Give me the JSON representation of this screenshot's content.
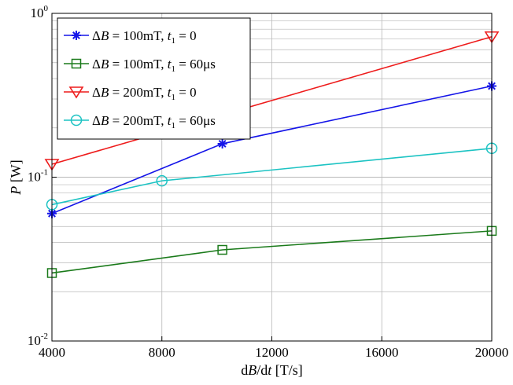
{
  "chart_data": {
    "type": "line",
    "xscale": "linear",
    "yscale": "log",
    "xlim": [
      4000,
      20000
    ],
    "ylim": [
      0.01,
      1
    ],
    "x_ticks": [
      {
        "value": 4000,
        "label": "4000"
      },
      {
        "value": 8000,
        "label": "8000"
      },
      {
        "value": 12000,
        "label": "12000"
      },
      {
        "value": 16000,
        "label": "16000"
      },
      {
        "value": 20000,
        "label": "20000"
      }
    ],
    "y_ticks": [
      {
        "value": 0.01,
        "base": "10",
        "exp": "-2"
      },
      {
        "value": 0.1,
        "base": "10",
        "exp": "-1"
      },
      {
        "value": 1,
        "base": "10",
        "exp": "0"
      }
    ],
    "xlabel": "dB/dt [T/s]",
    "ylabel": "P [W]",
    "grid": true,
    "legend_position": "top-left",
    "series": [
      {
        "name": "ΔB = 100mT, t1 = 0",
        "legend": {
          "delta": "Δ",
          "b": "B",
          "mid": " = 100mT, ",
          "t": "t",
          "sub": "1",
          "end": " = 0"
        },
        "color": "#1515e8",
        "marker": "asterisk",
        "x": [
          4000,
          10200,
          20000
        ],
        "y": [
          0.06,
          0.16,
          0.36
        ]
      },
      {
        "name": "ΔB = 100mT, t1 = 60μs",
        "legend": {
          "delta": "Δ",
          "b": "B",
          "mid": " = 100mT, ",
          "t": "t",
          "sub": "1",
          "end": " = 60μs"
        },
        "color": "#1a7a1a",
        "marker": "square",
        "x": [
          4000,
          10200,
          20000
        ],
        "y": [
          0.026,
          0.036,
          0.047
        ]
      },
      {
        "name": "ΔB = 200mT, t1 = 0",
        "legend": {
          "delta": "Δ",
          "b": "B",
          "mid": " = 200mT, ",
          "t": "t",
          "sub": "1",
          "end": " = 0"
        },
        "color": "#ee1c1c",
        "marker": "triangle-down",
        "x": [
          4000,
          20000
        ],
        "y": [
          0.12,
          0.72
        ]
      },
      {
        "name": "ΔB = 200mT, t1 = 60μs",
        "legend": {
          "delta": "Δ",
          "b": "B",
          "mid": " = 200mT, ",
          "t": "t",
          "sub": "1",
          "end": " = 60μs"
        },
        "color": "#1cc3c3",
        "marker": "circle",
        "x": [
          4000,
          8000,
          20000
        ],
        "y": [
          0.068,
          0.095,
          0.15
        ]
      }
    ]
  }
}
